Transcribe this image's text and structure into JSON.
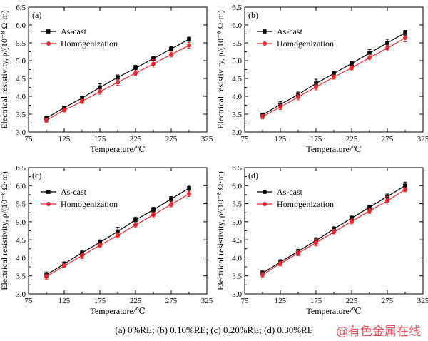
{
  "figure_caption": "(a) 0%RE; (b) 0.10%RE; (c) 0.20%RE; (d) 0.30%RE",
  "watermark": "@有色金属在线",
  "colors": {
    "as_cast": "#000000",
    "homogenization": "#e8262b"
  },
  "chart_data": [
    {
      "type": "line",
      "panel": "(a)",
      "xlabel": "Temperature/℃",
      "ylabel": "Electrical resistivity, ρ/(10⁻⁸ Ω·m)",
      "xlim": [
        75,
        325
      ],
      "ylim": [
        3.0,
        6.5
      ],
      "xticks": [
        "75",
        "125",
        "175",
        "225",
        "275",
        "325"
      ],
      "yticks": [
        "3.0",
        "3.5",
        "4.0",
        "4.5",
        "5.0",
        "5.5",
        "6.0",
        "6.5"
      ],
      "legend_position": "upper-left",
      "x": [
        100,
        125,
        150,
        175,
        200,
        225,
        250,
        275,
        300
      ],
      "series": [
        {
          "name": "As-cast",
          "marker": "square",
          "values": [
            3.39,
            3.68,
            3.95,
            4.25,
            4.53,
            4.79,
            5.06,
            5.33,
            5.6
          ],
          "errors": [
            0.05,
            0.05,
            0.06,
            0.1,
            0.07,
            0.08,
            0.05,
            0.06,
            0.06
          ]
        },
        {
          "name": "Homogenization",
          "marker": "circle",
          "values": [
            3.33,
            3.61,
            3.86,
            4.13,
            4.39,
            4.65,
            4.91,
            5.17,
            5.43
          ],
          "errors": [
            0.06,
            0.05,
            0.06,
            0.07,
            0.08,
            0.06,
            0.12,
            0.07,
            0.08
          ]
        }
      ]
    },
    {
      "type": "line",
      "panel": "(b)",
      "xlabel": "Temperature/℃",
      "ylabel": "Electrical resistivity, ρ/(10⁻⁸ Ω·m)",
      "xlim": [
        75,
        325
      ],
      "ylim": [
        3.0,
        6.5
      ],
      "xticks": [
        "75",
        "125",
        "175",
        "225",
        "275",
        "325"
      ],
      "yticks": [
        "3.0",
        "3.5",
        "4.0",
        "4.5",
        "5.0",
        "5.5",
        "6.0",
        "6.5"
      ],
      "legend_position": "upper-left",
      "x": [
        100,
        125,
        150,
        175,
        200,
        225,
        250,
        275,
        300
      ],
      "series": [
        {
          "name": "As-cast",
          "marker": "square",
          "values": [
            3.48,
            3.77,
            4.05,
            4.36,
            4.64,
            4.92,
            5.21,
            5.5,
            5.78
          ],
          "errors": [
            0.05,
            0.08,
            0.07,
            0.12,
            0.07,
            0.06,
            0.1,
            0.1,
            0.07
          ]
        },
        {
          "name": "Homogenization",
          "marker": "circle",
          "values": [
            3.43,
            3.7,
            3.98,
            4.26,
            4.54,
            4.8,
            5.08,
            5.35,
            5.64
          ],
          "errors": [
            0.06,
            0.07,
            0.08,
            0.08,
            0.06,
            0.06,
            0.09,
            0.08,
            0.11
          ]
        }
      ]
    },
    {
      "type": "line",
      "panel": "(c)",
      "xlabel": "Temperature/℃",
      "ylabel": "Electrical resistivity, ρ/(10⁻⁸ Ω·m)",
      "xlim": [
        75,
        325
      ],
      "ylim": [
        3.0,
        6.5
      ],
      "xticks": [
        "75",
        "125",
        "175",
        "225",
        "275",
        "325"
      ],
      "yticks": [
        "3.0",
        "3.5",
        "4.0",
        "4.5",
        "5.0",
        "5.5",
        "6.0",
        "6.5"
      ],
      "legend_position": "upper-left",
      "x": [
        100,
        125,
        150,
        175,
        200,
        225,
        250,
        275,
        300
      ],
      "series": [
        {
          "name": "As-cast",
          "marker": "square",
          "values": [
            3.53,
            3.83,
            4.14,
            4.43,
            4.73,
            5.05,
            5.33,
            5.63,
            5.93
          ],
          "errors": [
            0.08,
            0.06,
            0.07,
            0.07,
            0.12,
            0.08,
            0.07,
            0.07,
            0.08
          ]
        },
        {
          "name": "Homogenization",
          "marker": "circle",
          "values": [
            3.48,
            3.78,
            4.06,
            4.35,
            4.62,
            4.91,
            5.19,
            5.48,
            5.77
          ],
          "errors": [
            0.07,
            0.06,
            0.08,
            0.06,
            0.07,
            0.07,
            0.08,
            0.07,
            0.07
          ]
        }
      ]
    },
    {
      "type": "line",
      "panel": "(d)",
      "xlabel": "Temperature/℃",
      "ylabel": "Electrical resistivity, ρ/(10⁻⁸ Ω·m)",
      "xlim": [
        75,
        325
      ],
      "ylim": [
        3.0,
        6.5
      ],
      "xticks": [
        "75",
        "125",
        "175",
        "225",
        "275",
        "325"
      ],
      "yticks": [
        "3.0",
        "3.5",
        "4.0",
        "4.5",
        "5.0",
        "5.5",
        "6.0",
        "6.5"
      ],
      "legend_position": "upper-left",
      "x": [
        100,
        125,
        150,
        175,
        200,
        225,
        250,
        275,
        300
      ],
      "series": [
        {
          "name": "As-cast",
          "marker": "square",
          "values": [
            3.58,
            3.88,
            4.18,
            4.48,
            4.8,
            5.1,
            5.4,
            5.7,
            6.0
          ],
          "errors": [
            0.07,
            0.07,
            0.06,
            0.08,
            0.06,
            0.06,
            0.06,
            0.07,
            0.1
          ]
        },
        {
          "name": "Homogenization",
          "marker": "circle",
          "values": [
            3.53,
            3.84,
            4.13,
            4.42,
            4.71,
            5.01,
            5.3,
            5.58,
            5.89
          ],
          "errors": [
            0.07,
            0.06,
            0.07,
            0.09,
            0.08,
            0.07,
            0.07,
            0.12,
            0.06
          ]
        }
      ]
    }
  ]
}
